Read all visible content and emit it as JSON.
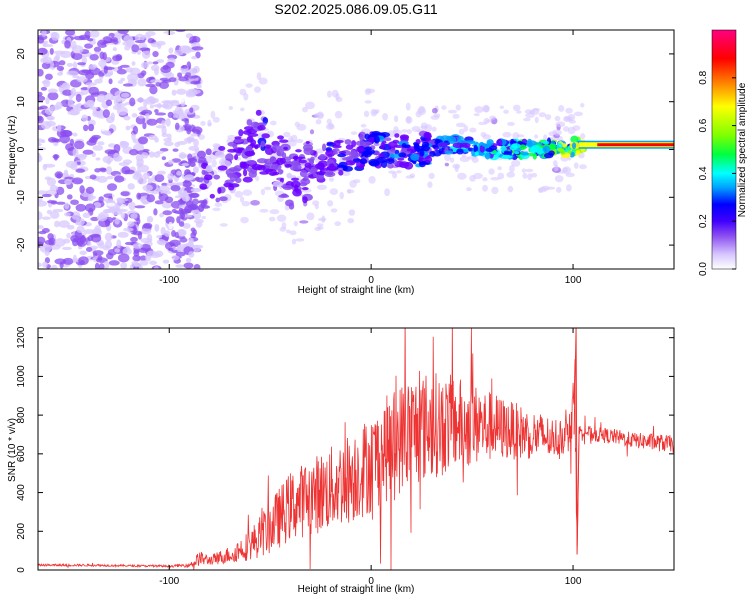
{
  "chart_data": [
    {
      "type": "heatmap",
      "title": "S202.2025.086.09.05.G11",
      "xlabel": "Height of straight line (km)",
      "ylabel": "Frequency (Hz)",
      "xlim": [
        -165,
        150
      ],
      "ylim": [
        -25,
        25
      ],
      "xticks": [
        -100,
        0,
        100
      ],
      "yticks": [
        -20,
        -10,
        0,
        10,
        20
      ],
      "colorbar": {
        "label": "Normalized spectral amplitude",
        "range": [
          0,
          1
        ],
        "ticks": [
          0.0,
          0.2,
          0.4,
          0.6,
          0.8
        ],
        "colors": [
          "#ffffff",
          "#d8c8ff",
          "#8a4cf0",
          "#6a00ff",
          "#0000ff",
          "#00a0ff",
          "#00ffff",
          "#00ff40",
          "#80ff00",
          "#ffff00",
          "#ff8000",
          "#ff0000",
          "#ff0080"
        ]
      },
      "ridge": {
        "description_points_x": [
          -90,
          -70,
          -55,
          -40,
          -20,
          0,
          20,
          40,
          60,
          80,
          100,
          120,
          150
        ],
        "frequency_hz": [
          -8,
          -4,
          2,
          -6,
          -2,
          0,
          0,
          1,
          0,
          0,
          0.5,
          1,
          1
        ],
        "amplitude": [
          0.2,
          0.25,
          0.3,
          0.25,
          0.3,
          0.35,
          0.4,
          0.45,
          0.55,
          0.6,
          0.75,
          0.9,
          0.95
        ]
      }
    },
    {
      "type": "line",
      "xlabel": "Height of straight line (km)",
      "ylabel": "SNR (10 * v/v)",
      "xlim": [
        -165,
        150
      ],
      "ylim": [
        0,
        1250
      ],
      "xticks": [
        -100,
        0,
        100
      ],
      "yticks": [
        0,
        200,
        400,
        600,
        800,
        1000,
        1200
      ],
      "series": [
        {
          "name": "SNR",
          "color": "#ee3333",
          "x": [
            -165,
            -140,
            -120,
            -100,
            -90,
            -85,
            -80,
            -70,
            -60,
            -50,
            -40,
            -30,
            -20,
            -10,
            0,
            10,
            20,
            30,
            40,
            50,
            60,
            70,
            80,
            90,
            98,
            101,
            102,
            103,
            105,
            110,
            120,
            130,
            140,
            150
          ],
          "y": [
            25,
            25,
            22,
            20,
            25,
            60,
            50,
            80,
            130,
            220,
            330,
            380,
            420,
            480,
            550,
            650,
            720,
            750,
            760,
            750,
            740,
            720,
            700,
            680,
            700,
            900,
            100,
            720,
            720,
            700,
            690,
            670,
            660,
            650
          ],
          "noise_amplitude": [
            5,
            6,
            5,
            5,
            10,
            40,
            25,
            45,
            80,
            140,
            180,
            200,
            220,
            240,
            260,
            280,
            300,
            280,
            250,
            220,
            180,
            150,
            130,
            110,
            90,
            200,
            50,
            40,
            35,
            40,
            40,
            40,
            45,
            45
          ]
        }
      ]
    }
  ]
}
